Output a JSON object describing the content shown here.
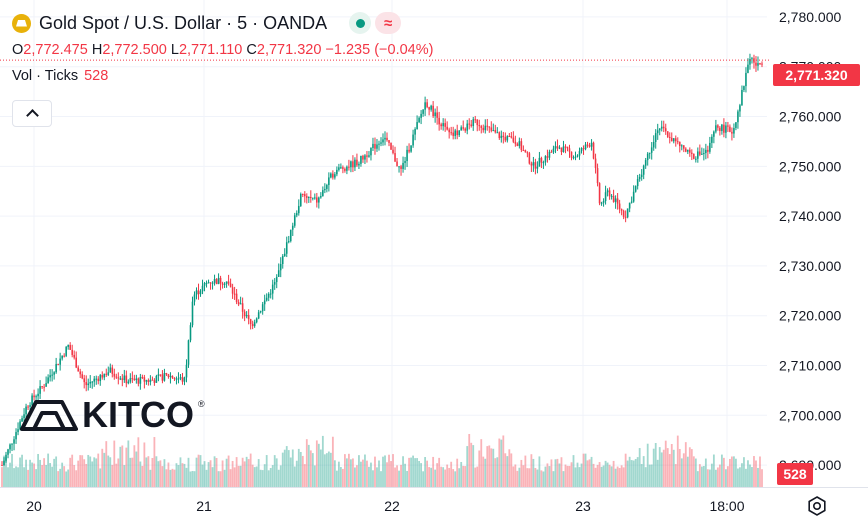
{
  "header": {
    "symbol_title": "Gold Spot / U.S. Dollar · 5 · OANDA",
    "status_icon": "market-open-dot-icon",
    "stream_icon": "wave-approx-icon",
    "ohlc": {
      "o_label": "O",
      "o_value": "2,772.475",
      "h_label": "H",
      "h_value": "2,772.500",
      "l_label": "L",
      "l_value": "2,771.110",
      "c_label": "C",
      "c_value": "2,771.320",
      "change": "−1.235 (−0.04%)"
    },
    "volume_label": "Vol · Ticks",
    "volume_value": "528"
  },
  "watermark": {
    "logo_text": "KITCO",
    "registered": "®"
  },
  "price_tag": "2,771.320",
  "volume_tag": "528",
  "colors": {
    "up": "#089981",
    "down": "#f23645",
    "grid": "#f0f3fa",
    "text": "#131722"
  },
  "chart_data": {
    "type": "candlestick",
    "x_ticks": [
      "20",
      "21",
      "22",
      "23",
      "18:00"
    ],
    "y_ticks": [
      "2,780.000",
      "2,770.000",
      "2,760.000",
      "2,750.000",
      "2,740.000",
      "2,730.000",
      "2,720.000",
      "2,710.000",
      "2,700.000",
      "2,690.000"
    ],
    "ylim": [
      2685.6,
      2783.4
    ],
    "current_price": 2771.32,
    "price_path": [
      [
        0,
        2690
      ],
      [
        3,
        2702
      ],
      [
        5,
        2706
      ],
      [
        8,
        2714
      ],
      [
        10,
        2706
      ],
      [
        13,
        2709
      ],
      [
        15,
        2707
      ],
      [
        18,
        2707
      ],
      [
        20,
        2708
      ],
      [
        22,
        2707
      ],
      [
        23,
        2724
      ],
      [
        25,
        2727
      ],
      [
        27,
        2727
      ],
      [
        30,
        2718
      ],
      [
        33,
        2727
      ],
      [
        36,
        2744
      ],
      [
        38,
        2743
      ],
      [
        40,
        2749
      ],
      [
        43,
        2751
      ],
      [
        46,
        2756
      ],
      [
        48,
        2749
      ],
      [
        51,
        2763
      ],
      [
        54,
        2756
      ],
      [
        57,
        2759
      ],
      [
        60,
        2756
      ],
      [
        62,
        2755
      ],
      [
        64,
        2750
      ],
      [
        67,
        2754
      ],
      [
        69,
        2752
      ],
      [
        71,
        2755
      ],
      [
        72,
        2742
      ],
      [
        73,
        2745
      ],
      [
        75,
        2740
      ],
      [
        77,
        2749
      ],
      [
        79,
        2758
      ],
      [
        81,
        2755
      ],
      [
        83,
        2752
      ],
      [
        85,
        2753
      ],
      [
        86,
        2758
      ],
      [
        88,
        2757
      ],
      [
        89,
        2764
      ],
      [
        90,
        2772
      ],
      [
        91,
        2770
      ],
      [
        91.5,
        2771.32
      ]
    ],
    "time_span_days": 4.58,
    "volume": {
      "max_ticks": 1200,
      "last": 528
    }
  }
}
